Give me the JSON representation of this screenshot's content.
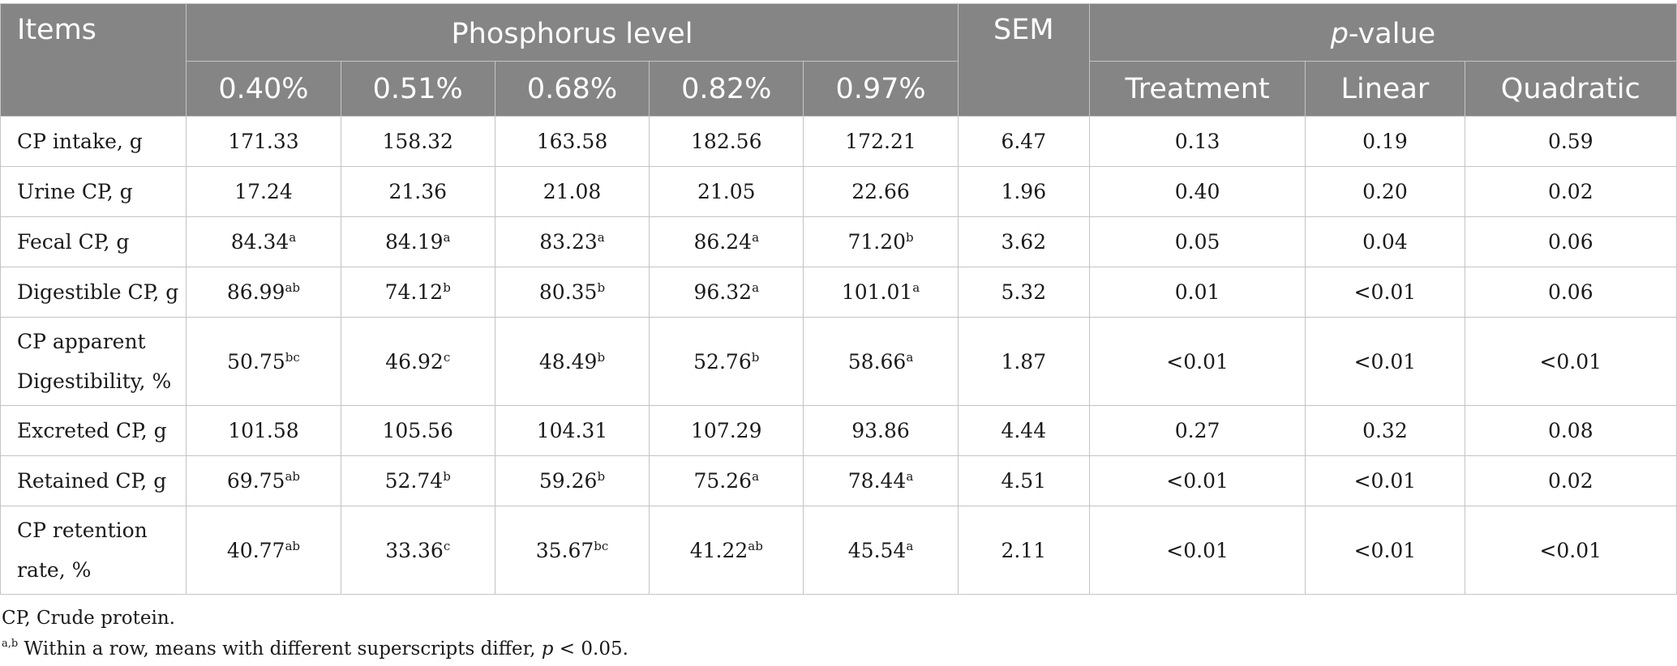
{
  "table": {
    "items_header": "Items",
    "phosphorus_header": "Phosphorus level",
    "sem_header": "SEM",
    "pvalue_header": {
      "italic": "p",
      "rest": "-value"
    },
    "levels": [
      "0.40%",
      "0.51%",
      "0.68%",
      "0.82%",
      "0.97%"
    ],
    "pvalue_cols": [
      "Treatment",
      "Linear",
      "Quadratic"
    ],
    "rows": [
      {
        "label": "CP intake, g",
        "vals": [
          {
            "v": "171.33",
            "s": ""
          },
          {
            "v": "158.32",
            "s": ""
          },
          {
            "v": "163.58",
            "s": ""
          },
          {
            "v": "182.56",
            "s": ""
          },
          {
            "v": "172.21",
            "s": ""
          }
        ],
        "sem": "6.47",
        "p": [
          "0.13",
          "0.19",
          "0.59"
        ]
      },
      {
        "label": "Urine CP, g",
        "vals": [
          {
            "v": "17.24",
            "s": ""
          },
          {
            "v": "21.36",
            "s": ""
          },
          {
            "v": "21.08",
            "s": ""
          },
          {
            "v": "21.05",
            "s": ""
          },
          {
            "v": "22.66",
            "s": ""
          }
        ],
        "sem": "1.96",
        "p": [
          "0.40",
          "0.20",
          "0.02"
        ]
      },
      {
        "label": "Fecal CP, g",
        "vals": [
          {
            "v": "84.34",
            "s": "a"
          },
          {
            "v": "84.19",
            "s": "a"
          },
          {
            "v": "83.23",
            "s": "a"
          },
          {
            "v": "86.24",
            "s": "a"
          },
          {
            "v": "71.20",
            "s": "b"
          }
        ],
        "sem": "3.62",
        "p": [
          "0.05",
          "0.04",
          "0.06"
        ]
      },
      {
        "label": "Digestible CP, g",
        "vals": [
          {
            "v": "86.99",
            "s": "ab"
          },
          {
            "v": "74.12",
            "s": "b"
          },
          {
            "v": "80.35",
            "s": "b"
          },
          {
            "v": "96.32",
            "s": "a"
          },
          {
            "v": "101.01",
            "s": "a"
          }
        ],
        "sem": "5.32",
        "p": [
          "0.01",
          "<0.01",
          "0.06"
        ]
      },
      {
        "label": "CP apparent Digestibility, %",
        "label_lines": [
          "CP apparent",
          "Digestibility, %"
        ],
        "vals": [
          {
            "v": "50.75",
            "s": "bc"
          },
          {
            "v": "46.92",
            "s": "c"
          },
          {
            "v": "48.49",
            "s": "b"
          },
          {
            "v": "52.76",
            "s": "b"
          },
          {
            "v": "58.66",
            "s": "a"
          }
        ],
        "sem": "1.87",
        "p": [
          "<0.01",
          "<0.01",
          "<0.01"
        ]
      },
      {
        "label": "Excreted CP, g",
        "vals": [
          {
            "v": "101.58",
            "s": ""
          },
          {
            "v": "105.56",
            "s": ""
          },
          {
            "v": "104.31",
            "s": ""
          },
          {
            "v": "107.29",
            "s": ""
          },
          {
            "v": "93.86",
            "s": ""
          }
        ],
        "sem": "4.44",
        "p": [
          "0.27",
          "0.32",
          "0.08"
        ]
      },
      {
        "label": "Retained CP, g",
        "vals": [
          {
            "v": "69.75",
            "s": "ab"
          },
          {
            "v": "52.74",
            "s": "b"
          },
          {
            "v": "59.26",
            "s": "b"
          },
          {
            "v": "75.26",
            "s": "a"
          },
          {
            "v": "78.44",
            "s": "a"
          }
        ],
        "sem": "4.51",
        "p": [
          "<0.01",
          "<0.01",
          "0.02"
        ]
      },
      {
        "label": "CP retention rate, %",
        "label_lines": [
          "CP retention",
          "rate, %"
        ],
        "vals": [
          {
            "v": "40.77",
            "s": "ab"
          },
          {
            "v": "33.36",
            "s": "c"
          },
          {
            "v": "35.67",
            "s": "bc"
          },
          {
            "v": "41.22",
            "s": "ab"
          },
          {
            "v": "45.54",
            "s": "a"
          }
        ],
        "sem": "2.11",
        "p": [
          "<0.01",
          "<0.01",
          "<0.01"
        ]
      }
    ]
  },
  "footnotes": {
    "abbrev": "CP, Crude protein.",
    "sig_sup": "a,b",
    "sig_text": " Within a row, means with different superscripts differ, ",
    "sig_p": "p",
    "sig_tail": " < 0.05."
  },
  "colors": {
    "header_bg": "#858585",
    "header_text": "#ffffff",
    "border": "#c4c4c4"
  }
}
